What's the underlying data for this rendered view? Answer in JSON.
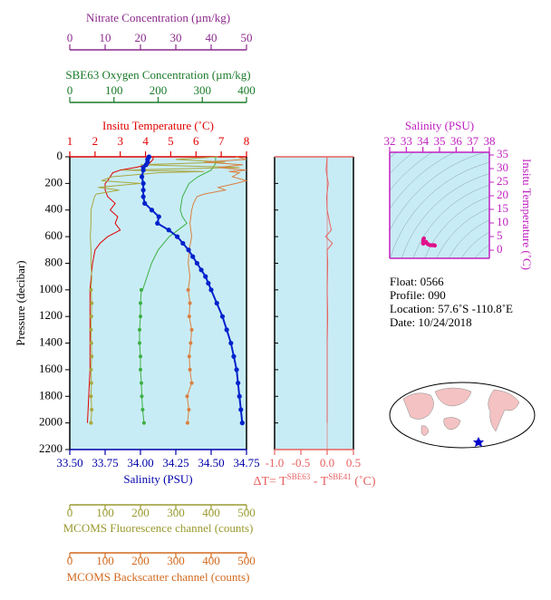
{
  "chart_data": [
    {
      "type": "profile",
      "ylabel": "Pressure (decibar)",
      "ylim": [
        0,
        2200
      ],
      "yticks": [
        0,
        200,
        400,
        600,
        800,
        1000,
        1200,
        1400,
        1600,
        1800,
        2000,
        2200
      ],
      "background": "#c8ecf5",
      "x_axes": [
        {
          "label": "Nitrate Concentration (µm/kg)",
          "color": "#8b2a8b",
          "xlim": [
            0,
            50
          ],
          "xticks": [
            0,
            10,
            20,
            30,
            40,
            50
          ],
          "series": []
        },
        {
          "label": "SBE63 Oxygen Concentration (µm/kg)",
          "color": "#1a7a2a",
          "xlim": [
            0,
            400
          ],
          "xticks": [
            0,
            100,
            200,
            300,
            400
          ],
          "series": [
            {
              "color": "#3cb043",
              "markers": false,
              "pressure": [
                0,
                50,
                100,
                150,
                200,
                300,
                400,
                450,
                500,
                550,
                600,
                700,
                800,
                900,
                1000
              ],
              "values": [
                330,
                330,
                320,
                290,
                270,
                255,
                250,
                255,
                265,
                245,
                225,
                200,
                185,
                175,
                165
              ]
            },
            {
              "color": "#3cb043",
              "markers": true,
              "pressure": [
                1000,
                1100,
                1200,
                1300,
                1400,
                1500,
                1600,
                1700,
                1800,
                1900,
                2000
              ],
              "values": [
                162,
                160,
                160,
                158,
                158,
                160,
                160,
                162,
                163,
                165,
                168
              ]
            }
          ]
        },
        {
          "label": "Insitu Temperature (˚C)",
          "color": "#e00000",
          "xlim": [
            1,
            8
          ],
          "xticks": [
            1,
            2,
            3,
            4,
            5,
            6,
            7,
            8
          ],
          "series": [
            {
              "color": "#e00000",
              "markers": false,
              "pressure": [
                0,
                20,
                40,
                60,
                80,
                100,
                120,
                150,
                180,
                200,
                250,
                300,
                350,
                400,
                450,
                500,
                550,
                600,
                650,
                700,
                800,
                900,
                1000,
                1200,
                1400,
                1600,
                1800,
                2000
              ],
              "values": [
                4.3,
                4.3,
                4.2,
                4.1,
                3.6,
                3.0,
                2.7,
                2.6,
                2.5,
                2.4,
                2.4,
                2.5,
                2.8,
                2.6,
                2.9,
                2.8,
                3.0,
                2.5,
                2.2,
                2.0,
                1.9,
                1.85,
                1.8,
                1.8,
                1.8,
                1.8,
                1.75,
                1.7
              ]
            }
          ]
        },
        {
          "label": "Salinity (PSU)",
          "color": "#0000aa",
          "xlim": [
            33.5,
            34.75
          ],
          "xticks": [
            {
              "value": 33.5,
              "label": "33.50"
            },
            {
              "value": 33.75,
              "label": "33.75"
            },
            {
              "value": 34,
              "label": "34.00"
            },
            {
              "value": 34.25,
              "label": "34.25"
            },
            {
              "value": 34.5,
              "label": "34.50"
            },
            {
              "value": 34.75,
              "label": "34.75"
            }
          ],
          "series": [
            {
              "color": "#0022cc",
              "markers": true,
              "pressure": [
                0,
                20,
                40,
                60,
                80,
                100,
                150,
                200,
                250,
                300,
                350,
                400,
                450,
                500,
                550,
                600,
                650,
                700,
                750,
                800,
                850,
                900,
                950,
                1000,
                1100,
                1200,
                1300,
                1400,
                1500,
                1600,
                1700,
                1800,
                1900,
                2000
              ],
              "values": [
                34.06,
                34.05,
                34.05,
                34.04,
                34.02,
                34.02,
                34.01,
                34.02,
                34.02,
                34.02,
                34.03,
                34.08,
                34.13,
                34.12,
                34.2,
                34.26,
                34.3,
                34.34,
                34.37,
                34.4,
                34.43,
                34.46,
                34.48,
                34.5,
                34.54,
                34.58,
                34.61,
                34.64,
                34.66,
                34.68,
                34.69,
                34.7,
                34.71,
                34.72
              ]
            }
          ]
        },
        {
          "label": "MCOMS Fluorescence channel (counts)",
          "color": "#9a9a30",
          "xlim": [
            0,
            500
          ],
          "xticks": [
            0,
            100,
            200,
            300,
            400,
            500
          ],
          "series": [
            {
              "color": "#a8a840",
              "markers": false,
              "pressure": [
                0,
                20,
                40,
                60,
                80,
                100,
                110,
                120,
                150,
                180,
                200,
                230,
                250,
                280,
                300,
                350,
                400,
                500,
                600,
                700,
                800,
                900,
                1000
              ],
              "values": [
                420,
                300,
                440,
                200,
                480,
                150,
                380,
                250,
                120,
                90,
                200,
                80,
                140,
                75,
                70,
                65,
                60,
                60,
                58,
                60,
                60,
                62,
                60
              ]
            },
            {
              "color": "#a8a840",
              "markers": true,
              "pressure": [
                1000,
                1100,
                1200,
                1300,
                1400,
                1500,
                1600,
                1700,
                1800,
                1900,
                2000
              ],
              "values": [
                60,
                62,
                61,
                60,
                61,
                62,
                60,
                61,
                60,
                62,
                60
              ]
            }
          ]
        },
        {
          "label": "MCOMS Backscatter channel (counts)",
          "color": "#d2691e",
          "xlim": [
            0,
            500
          ],
          "xticks": [
            0,
            100,
            200,
            300,
            400,
            500
          ],
          "series": [
            {
              "color": "#d98040",
              "markers": false,
              "pressure": [
                0,
                20,
                40,
                60,
                80,
                100,
                110,
                120,
                150,
                180,
                200,
                230,
                250,
                280,
                300,
                350,
                400,
                500,
                600,
                700,
                800,
                900,
                1000
              ],
              "values": [
                470,
                500,
                380,
                490,
                420,
                500,
                450,
                480,
                460,
                500,
                470,
                420,
                440,
                380,
                360,
                350,
                345,
                340,
                345,
                338,
                335,
                340,
                335
              ]
            },
            {
              "color": "#d98040",
              "markers": true,
              "pressure": [
                1000,
                1100,
                1200,
                1300,
                1400,
                1500,
                1600,
                1700,
                1800,
                1900,
                2000
              ],
              "values": [
                335,
                340,
                338,
                345,
                342,
                338,
                340,
                345,
                332,
                337,
                333
              ]
            }
          ]
        }
      ]
    },
    {
      "type": "profile-dt",
      "xlabel": [
        "ΔT= T",
        "SBE63",
        " - T",
        "SBE41",
        " (˚C)"
      ],
      "color": "#e86060",
      "xlim": [
        -1,
        0.5
      ],
      "xticks": [
        {
          "value": -1,
          "label": "-1.0"
        },
        -0.5,
        {
          "value": 0,
          "label": "0.0"
        },
        0.5
      ],
      "ylim": [
        0,
        2200
      ],
      "yticks": [
        0,
        200,
        400,
        600,
        800,
        1000,
        1200,
        1400,
        1600,
        1800,
        2000,
        2200
      ],
      "background": "#c8ecf5",
      "pressure": [
        0,
        100,
        200,
        300,
        400,
        500,
        550,
        600,
        650,
        700,
        800,
        1000,
        1200,
        1400,
        1600,
        1800,
        2000
      ],
      "values": [
        0,
        -0.02,
        0.02,
        -0.01,
        0,
        0.05,
        0.08,
        -0.03,
        0.1,
        0,
        0.01,
        0,
        0.01,
        0,
        0,
        0,
        0
      ]
    },
    {
      "type": "scatter",
      "xlabel": "Salinity (PSU)",
      "ylabel": "Insitu Temperature (˚C)",
      "color": "#e0108a",
      "axis_color": "#c020c0",
      "xlim": [
        32,
        38
      ],
      "xticks": [
        32,
        33,
        34,
        35,
        36,
        37,
        38
      ],
      "ylim": [
        -3,
        36
      ],
      "yticks": [
        0,
        5,
        10,
        15,
        20,
        25,
        30,
        35
      ],
      "background": "#c8ecf5",
      "x": [
        34.06,
        34.04,
        34.02,
        34.01,
        34.02,
        34.03,
        34.08,
        34.13,
        34.2,
        34.3,
        34.4,
        34.5,
        34.58,
        34.64,
        34.68,
        34.72
      ],
      "y": [
        4.3,
        4.1,
        3.6,
        2.6,
        2.4,
        2.8,
        2.6,
        2.9,
        3.0,
        2.2,
        1.9,
        1.8,
        1.8,
        1.8,
        1.8,
        1.7
      ]
    }
  ],
  "info": [
    "Float:  0566",
    "Profile:  090",
    "Location:  57.6˚S  -110.8˚E",
    "Date:  10/24/2018"
  ]
}
